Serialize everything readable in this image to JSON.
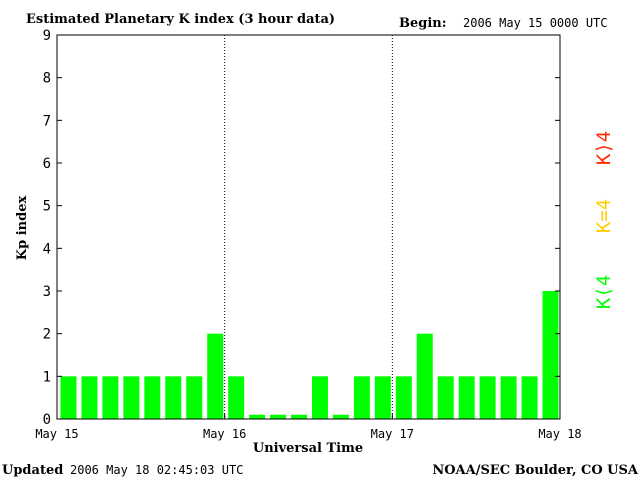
{
  "header": {
    "title": "Estimated Planetary K index (3 hour data)",
    "begin_label": "Begin:",
    "begin_value": "2006 May 15 0000 UTC"
  },
  "footer": {
    "updated_label": "Updated",
    "updated_value": "2006 May 18 02:45:03 UTC",
    "source": "NOAA/SEC Boulder, CO USA"
  },
  "legend": {
    "high": {
      "label": "K⟩4",
      "color": "#ff2a00"
    },
    "equal": {
      "label": "K=4",
      "color": "#ffcc00"
    },
    "low": {
      "label": "K⟨4",
      "color": "#00ff00"
    }
  },
  "chart_data": {
    "type": "bar",
    "title": "Estimated Planetary K index (3 hour data)",
    "xlabel": "Universal Time",
    "ylabel": "Kp index",
    "ylim": [
      0,
      9
    ],
    "yticks": [
      0,
      1,
      2,
      3,
      4,
      5,
      6,
      7,
      8,
      9
    ],
    "x_tick_labels": [
      "May 15",
      "May 16",
      "May 17",
      "May 18"
    ],
    "day_separators": [
      "May 16",
      "May 17"
    ],
    "bars_per_day": 8,
    "values": [
      1,
      1,
      1,
      1,
      1,
      1,
      1,
      2,
      1,
      0.1,
      0.1,
      0.1,
      1,
      0.1,
      1,
      1,
      1,
      2,
      1,
      1,
      1,
      1,
      1,
      3
    ],
    "bar_color": "#00ff00"
  }
}
